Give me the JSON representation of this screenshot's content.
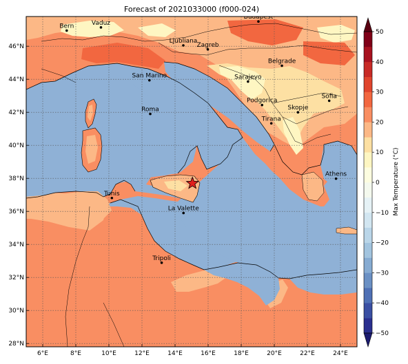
{
  "title": "Forecast of 2021033000 (f000-024)",
  "map": {
    "lon_range": [
      5,
      25
    ],
    "lat_range": [
      27.8,
      47.8
    ],
    "x_ticks": [
      {
        "lon": 6,
        "label": "6°E"
      },
      {
        "lon": 8,
        "label": "8°E"
      },
      {
        "lon": 10,
        "label": "10°E"
      },
      {
        "lon": 12,
        "label": "12°E"
      },
      {
        "lon": 14,
        "label": "14°E"
      },
      {
        "lon": 16,
        "label": "16°E"
      },
      {
        "lon": 18,
        "label": "18°E"
      },
      {
        "lon": 20,
        "label": "20°E"
      },
      {
        "lon": 22,
        "label": "22°E"
      },
      {
        "lon": 24,
        "label": "24°E"
      }
    ],
    "y_ticks": [
      {
        "lat": 28,
        "label": "28°N"
      },
      {
        "lat": 30,
        "label": "30°N"
      },
      {
        "lat": 32,
        "label": "32°N"
      },
      {
        "lat": 34,
        "label": "34°N"
      },
      {
        "lat": 36,
        "label": "36°N"
      },
      {
        "lat": 38,
        "label": "38°N"
      },
      {
        "lat": 40,
        "label": "40°N"
      },
      {
        "lat": 42,
        "label": "42°N"
      },
      {
        "lat": 44,
        "label": "44°N"
      },
      {
        "lat": 46,
        "label": "46°N"
      }
    ],
    "grid": true,
    "marker": {
      "lon": 15.05,
      "lat": 37.7,
      "symbol": "star",
      "color": "#e0201c"
    }
  },
  "cities": [
    {
      "name": "Bern",
      "lon": 7.45,
      "lat": 46.95
    },
    {
      "name": "Vaduz",
      "lon": 9.52,
      "lat": 47.14
    },
    {
      "name": "Budapest",
      "lon": 19.04,
      "lat": 47.5
    },
    {
      "name": "Ljubliana",
      "lon": 14.5,
      "lat": 46.05
    },
    {
      "name": "Zagreb",
      "lon": 15.98,
      "lat": 45.81
    },
    {
      "name": "Belgrade",
      "lon": 20.46,
      "lat": 44.82
    },
    {
      "name": "San Marino",
      "lon": 12.45,
      "lat": 43.94
    },
    {
      "name": "Sarajevo",
      "lon": 18.41,
      "lat": 43.86
    },
    {
      "name": "Sofia",
      "lon": 23.32,
      "lat": 42.7
    },
    {
      "name": "Podgorica",
      "lon": 19.26,
      "lat": 42.44
    },
    {
      "name": "Skopje",
      "lon": 21.43,
      "lat": 42.0
    },
    {
      "name": "Roma",
      "lon": 12.5,
      "lat": 41.9
    },
    {
      "name": "Tirana",
      "lon": 19.82,
      "lat": 41.33
    },
    {
      "name": "Athens",
      "lon": 23.73,
      "lat": 37.98
    },
    {
      "name": "Tunis",
      "lon": 10.18,
      "lat": 36.81
    },
    {
      "name": "La Valette",
      "lon": 14.51,
      "lat": 35.9
    },
    {
      "name": "Tripoli",
      "lon": 13.19,
      "lat": 32.89
    }
  ],
  "colorbar": {
    "label": "Max Temperature (°C)",
    "range": [
      -50,
      50
    ],
    "ticks": [
      -50,
      -40,
      -30,
      -20,
      -10,
      0,
      10,
      20,
      30,
      40,
      50
    ],
    "tick_labels": [
      "−50",
      "−40",
      "−30",
      "−20",
      "−10",
      "0",
      "10",
      "20",
      "30",
      "40",
      "50"
    ],
    "extend": "both",
    "bands": [
      {
        "from": -50,
        "to": -45,
        "color": "#2a2f8f"
      },
      {
        "from": -45,
        "to": -40,
        "color": "#3a4fa3"
      },
      {
        "from": -40,
        "to": -35,
        "color": "#4f70b5"
      },
      {
        "from": -35,
        "to": -30,
        "color": "#6a90c4"
      },
      {
        "from": -30,
        "to": -25,
        "color": "#86abd2"
      },
      {
        "from": -25,
        "to": -20,
        "color": "#a2c4df"
      },
      {
        "from": -20,
        "to": -15,
        "color": "#bad6e9"
      },
      {
        "from": -15,
        "to": -10,
        "color": "#d2e6f1"
      },
      {
        "from": -10,
        "to": -5,
        "color": "#e6f2f6"
      },
      {
        "from": -5,
        "to": 0,
        "color": "#f4f9ee"
      },
      {
        "from": 0,
        "to": 5,
        "color": "#fdfde0"
      },
      {
        "from": 5,
        "to": 10,
        "color": "#fef6c2"
      },
      {
        "from": 10,
        "to": 15,
        "color": "#fde0a3"
      },
      {
        "from": 15,
        "to": 20,
        "color": "#fcb886"
      },
      {
        "from": 20,
        "to": 25,
        "color": "#f98e62"
      },
      {
        "from": 25,
        "to": 30,
        "color": "#f26740"
      },
      {
        "from": 30,
        "to": 35,
        "color": "#e0452d"
      },
      {
        "from": 35,
        "to": 40,
        "color": "#c82a26"
      },
      {
        "from": 40,
        "to": 45,
        "color": "#a8121f"
      },
      {
        "from": 45,
        "to": 50,
        "color": "#7f0017"
      }
    ],
    "under_color": "#1c1c70",
    "over_color": "#5a0010"
  },
  "colors": {
    "sea": "#8fb1d6",
    "land_20_25": "#f98e62",
    "land_15_20": "#fcb886",
    "land_10_15": "#fde0a3",
    "land_5_10": "#fef6c2",
    "land_25_30": "#f26740"
  }
}
